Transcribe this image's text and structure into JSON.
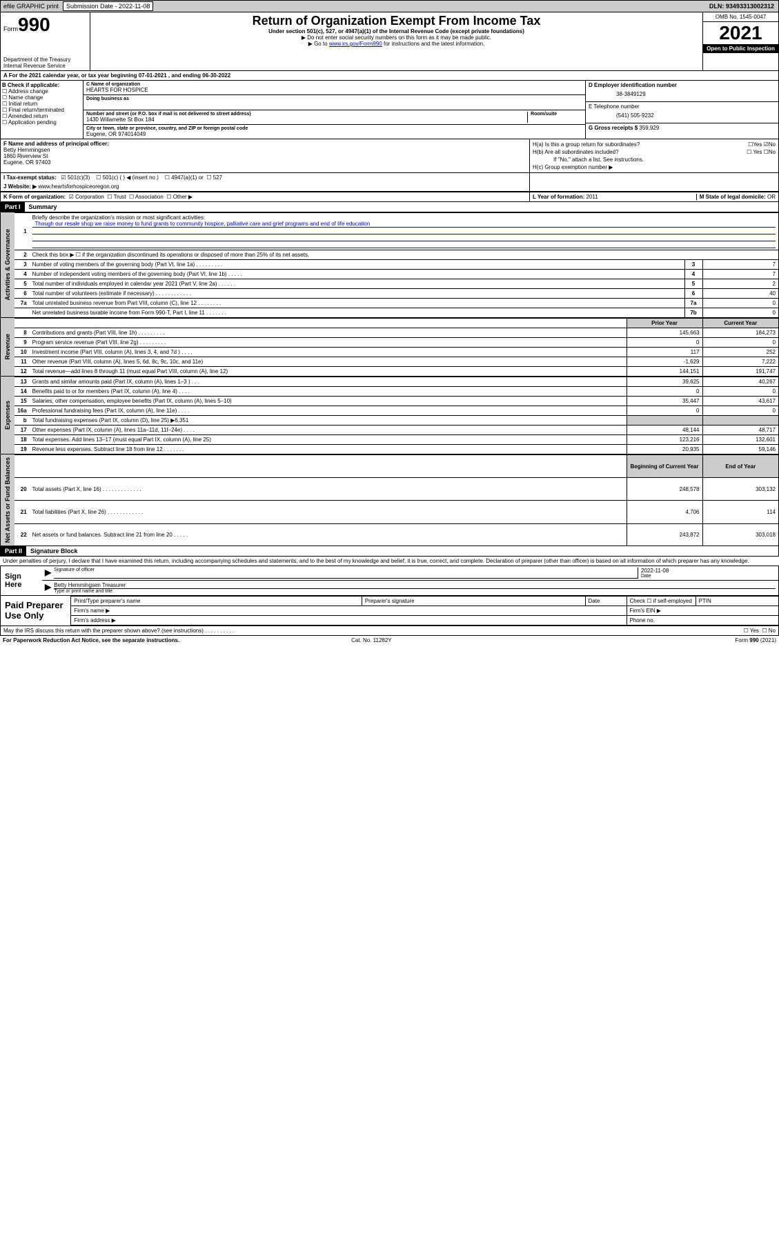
{
  "topbar": {
    "efile": "efile GRAPHIC print",
    "sub_label": "Submission Date - 2022-11-08",
    "dln": "DLN: 93493313002312"
  },
  "header": {
    "form_word": "Form",
    "form_num": "990",
    "dept": "Department of the Treasury Internal Revenue Service",
    "title": "Return of Organization Exempt From Income Tax",
    "sub": "Under section 501(c), 527, or 4947(a)(1) of the Internal Revenue Code (except private foundations)",
    "note1": "▶ Do not enter social security numbers on this form as it may be made public.",
    "note2_pre": "▶ Go to ",
    "note2_link": "www.irs.gov/Form990",
    "note2_post": " for instructions and the latest information.",
    "omb": "OMB No. 1545-0047",
    "year": "2021",
    "open": "Open to Public Inspection"
  },
  "taxyear": "A For the 2021 calendar year, or tax year beginning 07-01-2021   , and ending 06-30-2022",
  "b": {
    "label": "B Check if applicable:",
    "items": [
      "Address change",
      "Name change",
      "Initial return",
      "Final return/terminated",
      "Amended return",
      "Application pending"
    ]
  },
  "c": {
    "name_lbl": "C Name of organization",
    "name": "HEARTS FOR HOSPICE",
    "dba_lbl": "Doing business as",
    "addr_lbl": "Number and street (or P.O. box if mail is not delivered to street address)",
    "addr": "1430 Willamette St Box 184",
    "room_lbl": "Room/suite",
    "city_lbl": "City or town, state or province, country, and ZIP or foreign postal code",
    "city": "Eugene, OR  974014049"
  },
  "d": {
    "ein_lbl": "D Employer identification number",
    "ein": "38-3849129",
    "tel_lbl": "E Telephone number",
    "tel": "(541) 505-9232",
    "gross_lbl": "G Gross receipts $",
    "gross": "359,929"
  },
  "f": {
    "lbl": "F Name and address of principal officer:",
    "name": "Betty Hemmingsen",
    "addr1": "1860 Riverview St",
    "addr2": "Eugene, OR  97403"
  },
  "h": {
    "a": "H(a)  Is this a group return for subordinates?",
    "a_ans": "No",
    "b": "H(b)  Are all subordinates included?",
    "b_note": "If \"No,\" attach a list. See instructions.",
    "c": "H(c)  Group exemption number ▶"
  },
  "i": {
    "lbl": "I     Tax-exempt status:",
    "c3": "501(c)(3)",
    "c": "501(c) (  ) ◀ (insert no.)",
    "a1": "4947(a)(1) or",
    "s527": "527"
  },
  "j": {
    "lbl": "J    Website: ▶",
    "url": "www.heartsforhospiceoregon.org"
  },
  "k": {
    "lbl": "K Form of organization:",
    "opts": [
      "Corporation",
      "Trust",
      "Association",
      "Other ▶"
    ]
  },
  "l": {
    "lbl": "L Year of formation:",
    "val": "2011"
  },
  "m": {
    "lbl": "M State of legal domicile:",
    "val": "OR"
  },
  "part1": {
    "bar": "Part I",
    "title": "Summary"
  },
  "summary": {
    "q1": "Briefly describe the organization's mission or most significant activities:",
    "mission": "Though our resale shop we raise money to fund grants to community hospice, palliative care and grief programs and end of life education",
    "q2": "Check this box ▶ ☐  if the organization discontinued its operations or disposed of more than 25% of its net assets.",
    "rows_gov": [
      {
        "n": "3",
        "t": "Number of voting members of the governing body (Part VI, line 1a)  .    .    .    .    .    .    .    .    .",
        "bx": "3",
        "v": "7"
      },
      {
        "n": "4",
        "t": "Number of independent voting members of the governing body (Part VI, line 1b)   .    .    .    .    .",
        "bx": "4",
        "v": "7"
      },
      {
        "n": "5",
        "t": "Total number of individuals employed in calendar year 2021 (Part V, line 2a)   .    .    .    .    .    .",
        "bx": "5",
        "v": "2"
      },
      {
        "n": "6",
        "t": "Total number of volunteers (estimate if necessary)   .    .    .    .    .    .    .    .    .    .    .    .",
        "bx": "6",
        "v": "40"
      },
      {
        "n": "7a",
        "t": "Total unrelated business revenue from Part VIII, column (C), line 12   .    .    .    .    .    .    .    .",
        "bx": "7a",
        "v": "0"
      },
      {
        "n": "",
        "t": "Net unrelated business taxable income from Form 990-T, Part I, line 11   .    .    .    .    .    .    .",
        "bx": "7b",
        "v": "0"
      }
    ],
    "hdr_prior": "Prior Year",
    "hdr_curr": "Current Year",
    "rows_rev": [
      {
        "n": "8",
        "t": "Contributions and grants (Part VIII, line 1h)    .    .    .    .    .    .    .    .    .",
        "p": "145,663",
        "c": "184,273"
      },
      {
        "n": "9",
        "t": "Program service revenue (Part VIII, line 2g)    .    .    .    .    .    .    .    .    .",
        "p": "0",
        "c": "0"
      },
      {
        "n": "10",
        "t": "Investment income (Part VIII, column (A), lines 3, 4, and 7d )    .    .    .    .",
        "p": "117",
        "c": "252"
      },
      {
        "n": "11",
        "t": "Other revenue (Part VIII, column (A), lines 5, 6d, 8c, 9c, 10c, and 11e)",
        "p": "-1,629",
        "c": "7,222"
      },
      {
        "n": "12",
        "t": "Total revenue—add lines 8 through 11 (must equal Part VIII, column (A), line 12)",
        "p": "144,151",
        "c": "191,747"
      }
    ],
    "rows_exp": [
      {
        "n": "13",
        "t": "Grants and similar amounts paid (Part IX, column (A), lines 1–3 )   .    .    .",
        "p": "39,625",
        "c": "40,267"
      },
      {
        "n": "14",
        "t": "Benefits paid to or for members (Part IX, column (A), line 4)   .    .    .    .",
        "p": "0",
        "c": "0"
      },
      {
        "n": "15",
        "t": "Salaries, other compensation, employee benefits (Part IX, column (A), lines 5–10)",
        "p": "35,447",
        "c": "43,617"
      },
      {
        "n": "16a",
        "t": "Professional fundraising fees (Part IX, column (A), line 11e)    .    .    .    .",
        "p": "0",
        "c": "0"
      },
      {
        "n": "b",
        "t": "Total fundraising expenses (Part IX, column (D), line 25) ▶6,351",
        "p": "",
        "c": "",
        "shade": true
      },
      {
        "n": "17",
        "t": "Other expenses (Part IX, column (A), lines 11a–11d, 11f–24e)  .    .    .    .",
        "p": "48,144",
        "c": "48,717"
      },
      {
        "n": "18",
        "t": "Total expenses. Add lines 13–17 (must equal Part IX, column (A), line 25)",
        "p": "123,216",
        "c": "132,601"
      },
      {
        "n": "19",
        "t": "Revenue less expenses. Subtract line 18 from line 12  .    .    .    .    .    .    .",
        "p": "20,935",
        "c": "59,146"
      }
    ],
    "hdr_beg": "Beginning of Current Year",
    "hdr_end": "End of Year",
    "rows_net": [
      {
        "n": "20",
        "t": "Total assets (Part X, line 16)   .    .    .    .    .    .    .    .    .    .    .    .    .",
        "p": "248,578",
        "c": "303,132"
      },
      {
        "n": "21",
        "t": "Total liabilities (Part X, line 26)   .    .    .    .    .    .    .    .    .    .    .    .",
        "p": "4,706",
        "c": "114"
      },
      {
        "n": "22",
        "t": "Net assets or fund balances. Subtract line 21 from line 20  .    .    .    .    .",
        "p": "243,872",
        "c": "303,018"
      }
    ]
  },
  "labels": {
    "gov": "Activities & Governance",
    "rev": "Revenue",
    "exp": "Expenses",
    "net": "Net Assets or Fund Balances"
  },
  "part2": {
    "bar": "Part II",
    "title": "Signature Block"
  },
  "perjury": "Under penalties of perjury, I declare that I have examined this return, including accompanying schedules and statements, and to the best of my knowledge and belief, it is true, correct, and complete. Declaration of preparer (other than officer) is based on all information of which preparer has any knowledge.",
  "sign": {
    "here": "Sign Here",
    "sig_officer": "Signature of officer",
    "date": "Date",
    "date_val": "2022-11-08",
    "name": "Betty Hemmingsen Treasurer",
    "type": "Type or print name and title"
  },
  "prep": {
    "title": "Paid Preparer Use Only",
    "cols": [
      "Print/Type preparer's name",
      "Preparer's signature",
      "Date"
    ],
    "check": "Check ☐ if self-employed",
    "ptin": "PTIN",
    "firm_name": "Firm's name   ▶",
    "firm_ein": "Firm's EIN ▶",
    "firm_addr": "Firm's address ▶",
    "phone": "Phone no."
  },
  "bottom": {
    "discuss": "May the IRS discuss this return with the preparer shown above? (see instructions)   .    .    .    .    .    .    .    .    .    .",
    "yes": "Yes",
    "no": "No",
    "pra": "For Paperwork Reduction Act Notice, see the separate instructions.",
    "cat": "Cat. No. 11282Y",
    "form": "Form 990 (2021)"
  }
}
